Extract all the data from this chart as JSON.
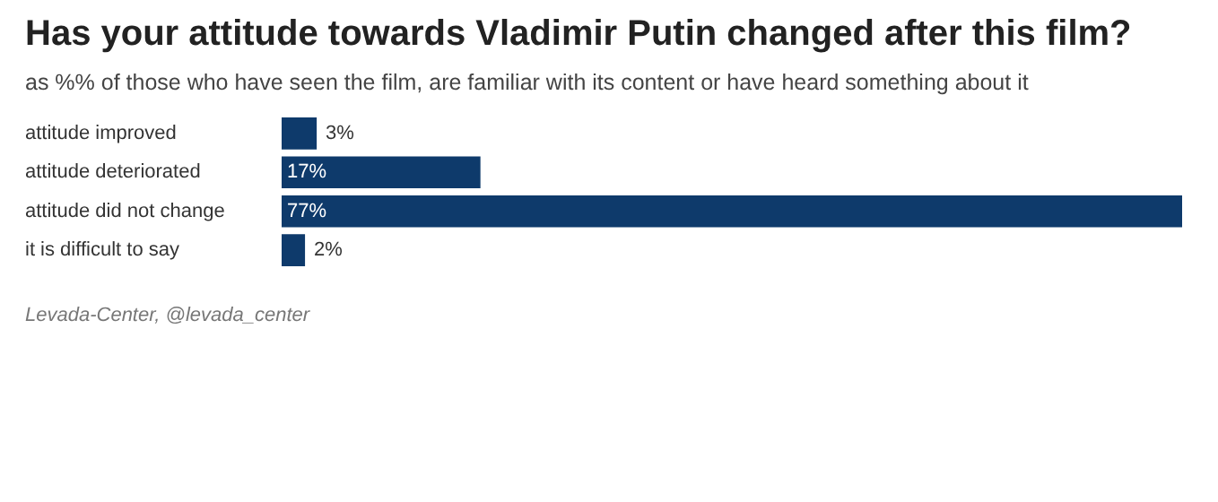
{
  "chart_data": {
    "type": "bar",
    "orientation": "horizontal",
    "title": "Has your attitude towards Vladimir Putin changed after this film?",
    "subtitle": "as %% of those who have seen the film, are familiar with its content or have heard something about it",
    "categories": [
      "attitude improved",
      "attitude deteriorated",
      "attitude did not change",
      "it is difficult to say"
    ],
    "values": [
      3,
      17,
      77,
      2
    ],
    "value_labels": [
      "3%",
      "17%",
      "77%",
      "2%"
    ],
    "color": "#0e3a6b",
    "grid": false,
    "legend": false,
    "annotations": [
      "Levada-Center, @levada_center"
    ]
  }
}
